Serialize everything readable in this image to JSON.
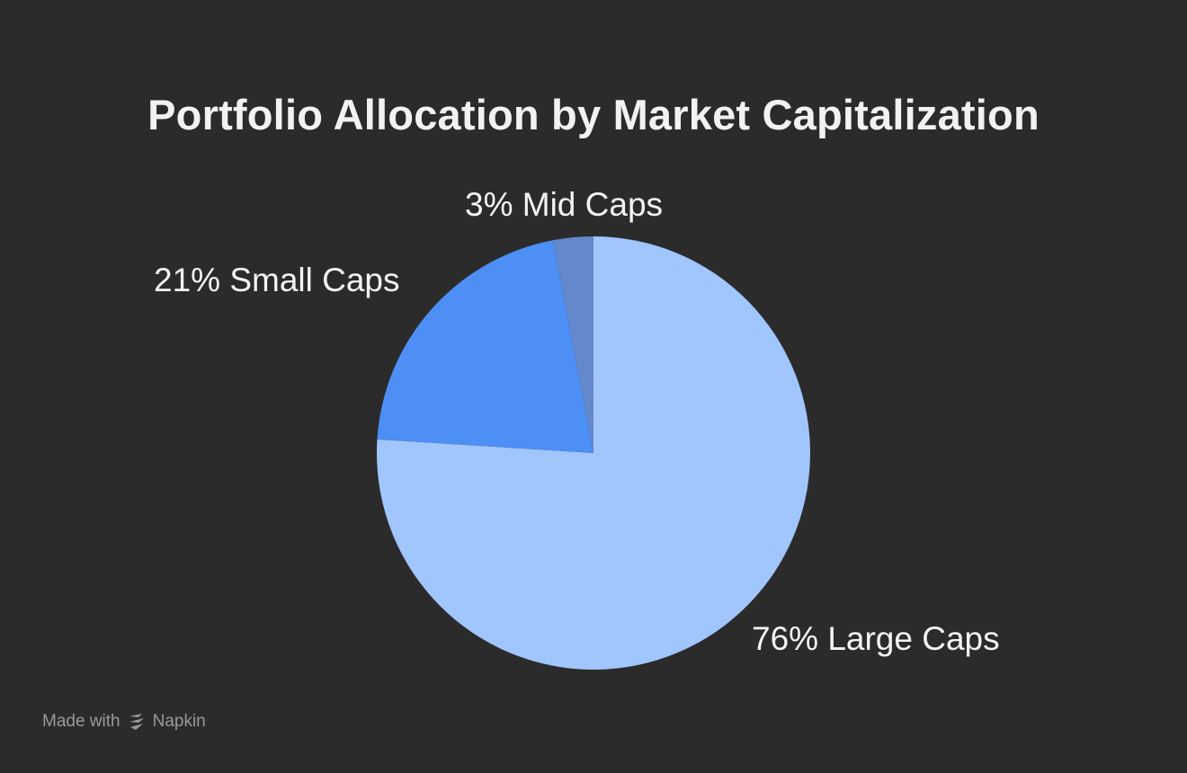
{
  "chart_data": {
    "type": "pie",
    "title": "Portfolio Allocation by Market Capitalization",
    "slices": [
      {
        "label": "Large Caps",
        "value": 76,
        "display": "76% Large Caps",
        "color": "#a1c5fd"
      },
      {
        "label": "Small Caps",
        "value": 21,
        "display": "21% Small Caps",
        "color": "#4d8ff5"
      },
      {
        "label": "Mid Caps",
        "value": 3,
        "display": "3% Mid Caps",
        "color": "#6488cc"
      }
    ]
  },
  "footer": {
    "made_with": "Made with",
    "brand": "Napkin",
    "logo_icon": "napkin-logo-icon"
  },
  "colors": {
    "background": "#2b2b2b",
    "title_text": "#f2f2f2",
    "label_text": "#f4f4f4",
    "credit_text": "#9a9a9a"
  }
}
